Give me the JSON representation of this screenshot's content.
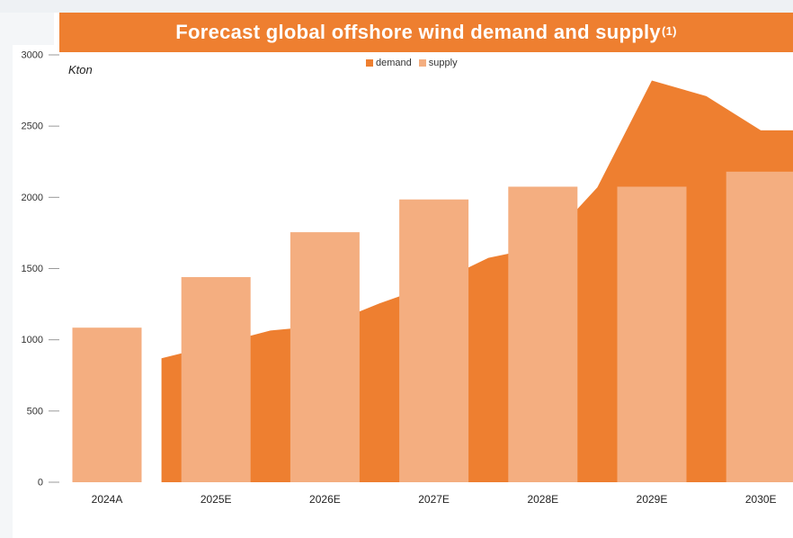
{
  "colors": {
    "title_bg": "#ee7f30",
    "demand": "#ee7f30",
    "supply": "#f4ae80"
  },
  "chart_data": {
    "type": "bar",
    "title": "Forecast global offshore wind demand and supply",
    "title_sup": "(1)",
    "unit": "Kton",
    "categories": [
      "2024A",
      "2025E",
      "2026E",
      "2027E",
      "2028E",
      "2029E",
      "2030E"
    ],
    "series": [
      {
        "name": "demand",
        "type": "area",
        "x": [
          0.5,
          1.0,
          1.5,
          2.0,
          2.5,
          3.0,
          3.5,
          4.0,
          4.5,
          5.0,
          5.5,
          6.0,
          6.5
        ],
        "values": [
          870,
          965,
          1065,
          1100,
          1255,
          1390,
          1575,
          1655,
          2070,
          2820,
          2710,
          2470,
          2470
        ]
      },
      {
        "name": "supply",
        "type": "bar",
        "values": [
          1085,
          1440,
          1755,
          1985,
          2075,
          2075,
          2180
        ]
      }
    ],
    "ylim": [
      0,
      3000
    ],
    "yticks": [
      0,
      500,
      1000,
      1500,
      2000,
      2500,
      3000
    ],
    "legend": {
      "position": "top-center"
    },
    "grid": false
  }
}
